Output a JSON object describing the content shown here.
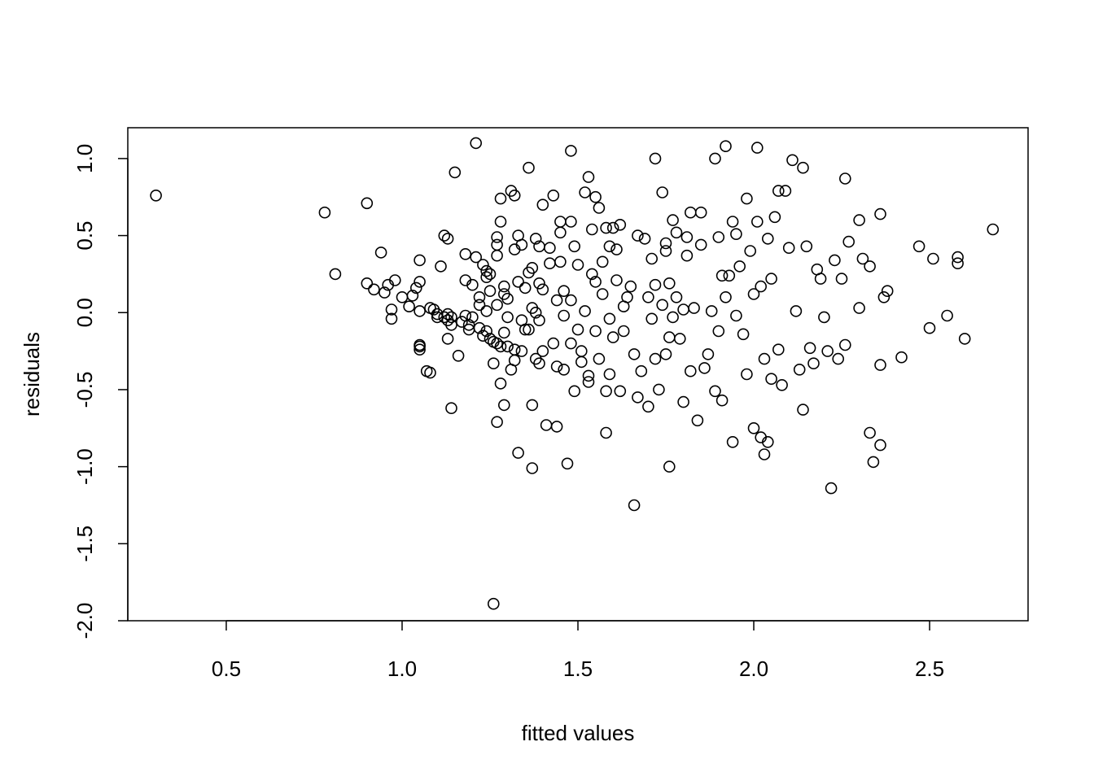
{
  "chart_data": {
    "type": "scatter",
    "xlabel": "fitted values",
    "ylabel": "residuals",
    "xlim": [
      0.22,
      2.78
    ],
    "ylim": [
      -2.0,
      1.2
    ],
    "xticks": [
      0.5,
      1.0,
      1.5,
      2.0,
      2.5
    ],
    "xtick_labels": [
      "0.5",
      "1.0",
      "1.5",
      "2.0",
      "2.5"
    ],
    "yticks": [
      -2.0,
      -1.5,
      -1.0,
      -0.5,
      0.0,
      0.5,
      1.0
    ],
    "ytick_labels": [
      "-2.0",
      "-1.5",
      "-1.0",
      "-0.5",
      "0.0",
      "0.5",
      "1.0"
    ],
    "grid": false,
    "marker": "open-circle",
    "points": [
      [
        0.3,
        0.76
      ],
      [
        0.78,
        0.65
      ],
      [
        0.81,
        0.25
      ],
      [
        0.9,
        0.71
      ],
      [
        0.9,
        0.19
      ],
      [
        0.92,
        0.15
      ],
      [
        0.94,
        0.39
      ],
      [
        0.95,
        0.13
      ],
      [
        0.96,
        0.18
      ],
      [
        0.97,
        0.02
      ],
      [
        0.97,
        -0.04
      ],
      [
        0.98,
        0.21
      ],
      [
        1.0,
        0.1
      ],
      [
        1.02,
        0.04
      ],
      [
        1.03,
        0.11
      ],
      [
        1.04,
        0.16
      ],
      [
        1.05,
        0.2
      ],
      [
        1.05,
        0.34
      ],
      [
        1.05,
        0.01
      ],
      [
        1.05,
        -0.21
      ],
      [
        1.05,
        -0.22
      ],
      [
        1.05,
        -0.24
      ],
      [
        1.07,
        -0.38
      ],
      [
        1.08,
        -0.39
      ],
      [
        1.08,
        0.03
      ],
      [
        1.09,
        0.02
      ],
      [
        1.1,
        -0.01
      ],
      [
        1.1,
        -0.03
      ],
      [
        1.11,
        0.3
      ],
      [
        1.12,
        0.5
      ],
      [
        1.12,
        -0.03
      ],
      [
        1.13,
        0.48
      ],
      [
        1.13,
        -0.01
      ],
      [
        1.13,
        -0.05
      ],
      [
        1.13,
        -0.17
      ],
      [
        1.14,
        -0.62
      ],
      [
        1.14,
        -0.03
      ],
      [
        1.14,
        -0.08
      ],
      [
        1.15,
        0.91
      ],
      [
        1.16,
        -0.28
      ],
      [
        1.17,
        -0.06
      ],
      [
        1.18,
        -0.02
      ],
      [
        1.18,
        0.38
      ],
      [
        1.18,
        0.21
      ],
      [
        1.19,
        -0.11
      ],
      [
        1.19,
        -0.08
      ],
      [
        1.2,
        0.18
      ],
      [
        1.2,
        -0.03
      ],
      [
        1.21,
        1.1
      ],
      [
        1.21,
        0.36
      ],
      [
        1.22,
        0.1
      ],
      [
        1.22,
        0.05
      ],
      [
        1.22,
        -0.1
      ],
      [
        1.23,
        0.31
      ],
      [
        1.23,
        -0.15
      ],
      [
        1.24,
        0.27
      ],
      [
        1.24,
        0.23
      ],
      [
        1.24,
        0.01
      ],
      [
        1.24,
        -0.12
      ],
      [
        1.25,
        0.14
      ],
      [
        1.25,
        0.25
      ],
      [
        1.25,
        -0.17
      ],
      [
        1.26,
        -0.19
      ],
      [
        1.26,
        -0.33
      ],
      [
        1.27,
        0.44
      ],
      [
        1.27,
        0.49
      ],
      [
        1.27,
        0.37
      ],
      [
        1.27,
        0.05
      ],
      [
        1.27,
        -0.2
      ],
      [
        1.27,
        -0.71
      ],
      [
        1.26,
        -1.89
      ],
      [
        1.28,
        0.74
      ],
      [
        1.28,
        0.59
      ],
      [
        1.28,
        -0.22
      ],
      [
        1.28,
        -0.46
      ],
      [
        1.29,
        0.17
      ],
      [
        1.29,
        0.12
      ],
      [
        1.29,
        -0.13
      ],
      [
        1.29,
        -0.6
      ],
      [
        1.3,
        0.09
      ],
      [
        1.3,
        -0.03
      ],
      [
        1.3,
        -0.22
      ],
      [
        1.31,
        0.79
      ],
      [
        1.31,
        -0.37
      ],
      [
        1.32,
        0.76
      ],
      [
        1.32,
        0.41
      ],
      [
        1.32,
        -0.24
      ],
      [
        1.32,
        -0.31
      ],
      [
        1.33,
        0.2
      ],
      [
        1.33,
        -0.91
      ],
      [
        1.33,
        0.5
      ],
      [
        1.34,
        0.44
      ],
      [
        1.34,
        -0.05
      ],
      [
        1.34,
        -0.25
      ],
      [
        1.35,
        0.16
      ],
      [
        1.35,
        -0.11
      ],
      [
        1.36,
        0.94
      ],
      [
        1.36,
        0.26
      ],
      [
        1.36,
        -0.11
      ],
      [
        1.37,
        0.29
      ],
      [
        1.37,
        0.03
      ],
      [
        1.37,
        -0.6
      ],
      [
        1.37,
        -1.01
      ],
      [
        1.38,
        0.48
      ],
      [
        1.38,
        0.0
      ],
      [
        1.38,
        -0.3
      ],
      [
        1.39,
        0.43
      ],
      [
        1.39,
        0.19
      ],
      [
        1.39,
        -0.05
      ],
      [
        1.39,
        -0.33
      ],
      [
        1.4,
        0.7
      ],
      [
        1.4,
        0.15
      ],
      [
        1.4,
        -0.25
      ],
      [
        1.41,
        -0.73
      ],
      [
        1.42,
        0.32
      ],
      [
        1.42,
        0.42
      ],
      [
        1.43,
        0.76
      ],
      [
        1.43,
        -0.2
      ],
      [
        1.44,
        0.08
      ],
      [
        1.44,
        -0.35
      ],
      [
        1.44,
        -0.74
      ],
      [
        1.45,
        0.59
      ],
      [
        1.45,
        0.52
      ],
      [
        1.45,
        0.33
      ],
      [
        1.46,
        0.14
      ],
      [
        1.46,
        -0.02
      ],
      [
        1.46,
        -0.37
      ],
      [
        1.47,
        -0.98
      ],
      [
        1.48,
        1.05
      ],
      [
        1.48,
        0.59
      ],
      [
        1.48,
        0.08
      ],
      [
        1.48,
        -0.2
      ],
      [
        1.49,
        0.43
      ],
      [
        1.49,
        -0.51
      ],
      [
        1.5,
        0.31
      ],
      [
        1.5,
        -0.11
      ],
      [
        1.51,
        -0.25
      ],
      [
        1.51,
        -0.32
      ],
      [
        1.52,
        0.78
      ],
      [
        1.52,
        0.01
      ],
      [
        1.53,
        0.88
      ],
      [
        1.53,
        -0.41
      ],
      [
        1.53,
        -0.45
      ],
      [
        1.54,
        0.54
      ],
      [
        1.54,
        0.25
      ],
      [
        1.55,
        0.2
      ],
      [
        1.55,
        -0.12
      ],
      [
        1.55,
        0.75
      ],
      [
        1.56,
        0.68
      ],
      [
        1.56,
        -0.3
      ],
      [
        1.57,
        0.33
      ],
      [
        1.57,
        0.12
      ],
      [
        1.58,
        0.55
      ],
      [
        1.58,
        -0.51
      ],
      [
        1.58,
        -0.78
      ],
      [
        1.59,
        0.43
      ],
      [
        1.59,
        -0.04
      ],
      [
        1.59,
        -0.4
      ],
      [
        1.6,
        0.55
      ],
      [
        1.6,
        -0.16
      ],
      [
        1.61,
        0.41
      ],
      [
        1.61,
        0.21
      ],
      [
        1.62,
        -0.51
      ],
      [
        1.62,
        0.57
      ],
      [
        1.63,
        0.04
      ],
      [
        1.63,
        -0.12
      ],
      [
        1.64,
        0.1
      ],
      [
        1.65,
        0.17
      ],
      [
        1.66,
        -0.27
      ],
      [
        1.67,
        -0.55
      ],
      [
        1.66,
        -1.25
      ],
      [
        1.67,
        0.5
      ],
      [
        1.68,
        -0.38
      ],
      [
        1.69,
        0.48
      ],
      [
        1.7,
        0.1
      ],
      [
        1.7,
        -0.61
      ],
      [
        1.71,
        0.35
      ],
      [
        1.71,
        -0.04
      ],
      [
        1.72,
        1.0
      ],
      [
        1.72,
        0.18
      ],
      [
        1.72,
        -0.3
      ],
      [
        1.73,
        -0.5
      ],
      [
        1.74,
        0.78
      ],
      [
        1.74,
        0.05
      ],
      [
        1.75,
        0.45
      ],
      [
        1.75,
        0.4
      ],
      [
        1.75,
        -0.27
      ],
      [
        1.76,
        0.19
      ],
      [
        1.76,
        -0.16
      ],
      [
        1.76,
        -1.0
      ],
      [
        1.77,
        0.6
      ],
      [
        1.77,
        -0.03
      ],
      [
        1.78,
        0.52
      ],
      [
        1.78,
        0.1
      ],
      [
        1.79,
        -0.17
      ],
      [
        1.8,
        -0.58
      ],
      [
        1.8,
        0.02
      ],
      [
        1.81,
        0.49
      ],
      [
        1.81,
        0.37
      ],
      [
        1.82,
        0.65
      ],
      [
        1.82,
        -0.38
      ],
      [
        1.83,
        0.03
      ],
      [
        1.84,
        -0.7
      ],
      [
        1.85,
        0.65
      ],
      [
        1.85,
        0.44
      ],
      [
        1.86,
        -0.36
      ],
      [
        1.87,
        -0.27
      ],
      [
        1.88,
        0.01
      ],
      [
        1.89,
        1.0
      ],
      [
        1.89,
        -0.51
      ],
      [
        1.9,
        0.49
      ],
      [
        1.9,
        -0.12
      ],
      [
        1.91,
        0.24
      ],
      [
        1.91,
        -0.57
      ],
      [
        1.92,
        1.08
      ],
      [
        1.92,
        0.1
      ],
      [
        1.93,
        0.24
      ],
      [
        1.94,
        0.59
      ],
      [
        1.94,
        -0.84
      ],
      [
        1.95,
        0.51
      ],
      [
        1.95,
        -0.02
      ],
      [
        1.96,
        0.3
      ],
      [
        1.97,
        -0.14
      ],
      [
        1.98,
        0.74
      ],
      [
        1.98,
        -0.4
      ],
      [
        1.99,
        0.4
      ],
      [
        2.0,
        0.12
      ],
      [
        2.0,
        -0.75
      ],
      [
        2.01,
        1.07
      ],
      [
        2.01,
        0.59
      ],
      [
        2.02,
        -0.81
      ],
      [
        2.02,
        0.17
      ],
      [
        2.03,
        -0.92
      ],
      [
        2.03,
        -0.3
      ],
      [
        2.04,
        0.48
      ],
      [
        2.04,
        -0.84
      ],
      [
        2.05,
        0.22
      ],
      [
        2.05,
        -0.43
      ],
      [
        2.06,
        0.62
      ],
      [
        2.07,
        0.79
      ],
      [
        2.07,
        -0.24
      ],
      [
        2.08,
        -0.47
      ],
      [
        2.09,
        0.79
      ],
      [
        2.1,
        0.42
      ],
      [
        2.11,
        0.99
      ],
      [
        2.12,
        0.01
      ],
      [
        2.13,
        -0.37
      ],
      [
        2.14,
        0.94
      ],
      [
        2.14,
        -0.63
      ],
      [
        2.15,
        0.43
      ],
      [
        2.16,
        -0.23
      ],
      [
        2.17,
        -0.33
      ],
      [
        2.18,
        0.28
      ],
      [
        2.19,
        0.22
      ],
      [
        2.2,
        -0.03
      ],
      [
        2.21,
        -0.25
      ],
      [
        2.22,
        -1.14
      ],
      [
        2.23,
        0.34
      ],
      [
        2.24,
        -0.3
      ],
      [
        2.25,
        0.22
      ],
      [
        2.26,
        0.87
      ],
      [
        2.26,
        -0.21
      ],
      [
        2.27,
        0.46
      ],
      [
        2.3,
        0.6
      ],
      [
        2.3,
        0.03
      ],
      [
        2.31,
        0.35
      ],
      [
        2.33,
        0.3
      ],
      [
        2.33,
        -0.78
      ],
      [
        2.34,
        -0.97
      ],
      [
        2.36,
        0.64
      ],
      [
        2.36,
        -0.34
      ],
      [
        2.36,
        -0.86
      ],
      [
        2.37,
        0.1
      ],
      [
        2.38,
        0.14
      ],
      [
        2.42,
        -0.29
      ],
      [
        2.47,
        0.43
      ],
      [
        2.5,
        -0.1
      ],
      [
        2.51,
        0.35
      ],
      [
        2.55,
        -0.02
      ],
      [
        2.58,
        0.36
      ],
      [
        2.58,
        0.32
      ],
      [
        2.6,
        -0.17
      ],
      [
        2.68,
        0.54
      ]
    ]
  }
}
